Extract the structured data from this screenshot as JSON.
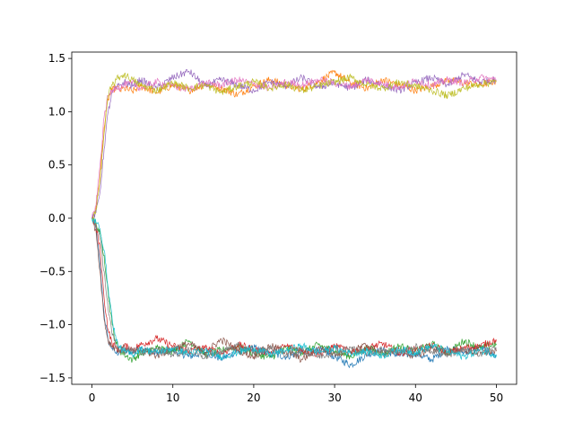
{
  "chart_data": {
    "type": "line",
    "title": "",
    "xlabel": "",
    "ylabel": "",
    "xlim": [
      -2.5,
      52.5
    ],
    "ylim": [
      -1.56,
      1.56
    ],
    "grid": false,
    "legend": "none",
    "x_ticks": [
      {
        "value": 0,
        "label": "0"
      },
      {
        "value": 10,
        "label": "10"
      },
      {
        "value": 20,
        "label": "20"
      },
      {
        "value": 30,
        "label": "30"
      },
      {
        "value": 40,
        "label": "40"
      },
      {
        "value": 50,
        "label": "50"
      }
    ],
    "y_ticks": [
      {
        "value": -1.5,
        "label": "−1.5"
      },
      {
        "value": -1.0,
        "label": "−1.0"
      },
      {
        "value": -0.5,
        "label": "−0.5"
      },
      {
        "value": 0.0,
        "label": "0.0"
      },
      {
        "value": 0.5,
        "label": "0.5"
      },
      {
        "value": 1.0,
        "label": "1.0"
      },
      {
        "value": 1.5,
        "label": "1.5"
      }
    ],
    "series": [
      {
        "color": "#1f77b4",
        "x": [
          0,
          0.5,
          1,
          1.5,
          2,
          2.5,
          3,
          3.5,
          4,
          5,
          6,
          8,
          10,
          12,
          14,
          16,
          18,
          20,
          22,
          24,
          26,
          28,
          30,
          32,
          34,
          36,
          38,
          40,
          42,
          44,
          46,
          48,
          50
        ],
        "y": [
          0,
          -0.1,
          -0.45,
          -0.9,
          -1.15,
          -1.22,
          -1.27,
          -1.25,
          -1.24,
          -1.26,
          -1.22,
          -1.27,
          -1.24,
          -1.3,
          -1.26,
          -1.32,
          -1.25,
          -1.22,
          -1.28,
          -1.3,
          -1.26,
          -1.23,
          -1.3,
          -1.38,
          -1.28,
          -1.24,
          -1.29,
          -1.27,
          -1.33,
          -1.22,
          -1.26,
          -1.21,
          -1.3
        ]
      },
      {
        "color": "#ff7f0e",
        "x": [
          0,
          0.5,
          1,
          1.5,
          2,
          2.5,
          3,
          3.5,
          4,
          5,
          6,
          8,
          10,
          12,
          14,
          16,
          18,
          20,
          22,
          24,
          26,
          28,
          30,
          32,
          34,
          36,
          38,
          40,
          42,
          44,
          46,
          48,
          50
        ],
        "y": [
          0,
          0.1,
          0.4,
          0.85,
          1.12,
          1.2,
          1.23,
          1.2,
          1.22,
          1.19,
          1.24,
          1.18,
          1.25,
          1.2,
          1.26,
          1.22,
          1.16,
          1.24,
          1.3,
          1.25,
          1.21,
          1.28,
          1.37,
          1.27,
          1.22,
          1.3,
          1.25,
          1.2,
          1.24,
          1.3,
          1.27,
          1.25,
          1.29
        ]
      },
      {
        "color": "#2ca02c",
        "x": [
          0,
          0.5,
          1,
          1.5,
          2,
          2.5,
          3,
          3.5,
          4,
          5,
          6,
          8,
          10,
          12,
          14,
          16,
          18,
          20,
          22,
          24,
          26,
          28,
          30,
          32,
          34,
          36,
          38,
          40,
          42,
          44,
          46,
          48,
          50
        ],
        "y": [
          0,
          -0.05,
          -0.15,
          -0.35,
          -0.7,
          -1.0,
          -1.18,
          -1.25,
          -1.28,
          -1.33,
          -1.27,
          -1.22,
          -1.25,
          -1.15,
          -1.28,
          -1.24,
          -1.2,
          -1.27,
          -1.31,
          -1.22,
          -1.26,
          -1.19,
          -1.25,
          -1.3,
          -1.22,
          -1.27,
          -1.2,
          -1.25,
          -1.18,
          -1.27,
          -1.15,
          -1.22,
          -1.18
        ]
      },
      {
        "color": "#d62728",
        "x": [
          0,
          0.5,
          1,
          1.5,
          2,
          2.5,
          3,
          3.5,
          4,
          5,
          6,
          8,
          10,
          12,
          14,
          16,
          18,
          20,
          22,
          24,
          26,
          28,
          30,
          32,
          34,
          36,
          38,
          40,
          42,
          44,
          46,
          48,
          50
        ],
        "y": [
          0,
          -0.08,
          -0.3,
          -0.75,
          -1.05,
          -1.18,
          -1.22,
          -1.24,
          -1.2,
          -1.23,
          -1.19,
          -1.13,
          -1.2,
          -1.25,
          -1.22,
          -1.27,
          -1.19,
          -1.23,
          -1.26,
          -1.2,
          -1.24,
          -1.28,
          -1.2,
          -1.25,
          -1.22,
          -1.18,
          -1.27,
          -1.23,
          -1.2,
          -1.26,
          -1.22,
          -1.2,
          -1.14
        ]
      },
      {
        "color": "#9467bd",
        "x": [
          0,
          0.5,
          1,
          1.5,
          2,
          2.5,
          3,
          3.5,
          4,
          5,
          6,
          8,
          10,
          12,
          14,
          16,
          18,
          20,
          22,
          24,
          26,
          28,
          30,
          32,
          34,
          36,
          38,
          40,
          42,
          44,
          46,
          48,
          50
        ],
        "y": [
          0,
          0.05,
          0.25,
          0.65,
          1.0,
          1.18,
          1.22,
          1.25,
          1.28,
          1.24,
          1.3,
          1.22,
          1.32,
          1.38,
          1.24,
          1.3,
          1.25,
          1.2,
          1.28,
          1.24,
          1.32,
          1.23,
          1.27,
          1.22,
          1.3,
          1.25,
          1.2,
          1.27,
          1.32,
          1.25,
          1.35,
          1.28,
          1.3
        ]
      },
      {
        "color": "#8c564b",
        "x": [
          0,
          0.5,
          1,
          1.5,
          2,
          2.5,
          3,
          3.5,
          4,
          5,
          6,
          8,
          10,
          12,
          14,
          16,
          18,
          20,
          22,
          24,
          26,
          28,
          30,
          32,
          34,
          36,
          38,
          40,
          42,
          44,
          46,
          48,
          50
        ],
        "y": [
          0,
          -0.12,
          -0.5,
          -0.95,
          -1.15,
          -1.2,
          -1.22,
          -1.25,
          -1.21,
          -1.27,
          -1.24,
          -1.29,
          -1.22,
          -1.18,
          -1.26,
          -1.14,
          -1.24,
          -1.3,
          -1.2,
          -1.25,
          -1.33,
          -1.22,
          -1.27,
          -1.25,
          -1.19,
          -1.28,
          -1.24,
          -1.3,
          -1.22,
          -1.26,
          -1.24,
          -1.27,
          -1.25
        ]
      },
      {
        "color": "#e377c2",
        "x": [
          0,
          0.5,
          1,
          1.5,
          2,
          2.5,
          3,
          3.5,
          4,
          5,
          6,
          8,
          10,
          12,
          14,
          16,
          18,
          20,
          22,
          24,
          26,
          28,
          30,
          32,
          34,
          36,
          38,
          40,
          42,
          44,
          46,
          48,
          50
        ],
        "y": [
          0,
          0.12,
          0.5,
          0.95,
          1.15,
          1.2,
          1.24,
          1.22,
          1.25,
          1.27,
          1.22,
          1.28,
          1.24,
          1.21,
          1.27,
          1.25,
          1.3,
          1.26,
          1.22,
          1.28,
          1.25,
          1.3,
          1.27,
          1.24,
          1.3,
          1.26,
          1.23,
          1.29,
          1.25,
          1.3,
          1.27,
          1.32,
          1.3
        ]
      },
      {
        "color": "#7f7f7f",
        "x": [
          0,
          0.5,
          1,
          1.5,
          2,
          2.5,
          3,
          3.5,
          4,
          5,
          6,
          8,
          10,
          12,
          14,
          16,
          18,
          20,
          22,
          24,
          26,
          28,
          30,
          32,
          34,
          36,
          38,
          40,
          42,
          44,
          46,
          48,
          50
        ],
        "y": [
          0,
          -0.06,
          -0.2,
          -0.5,
          -0.85,
          -1.1,
          -1.2,
          -1.23,
          -1.25,
          -1.22,
          -1.27,
          -1.23,
          -1.28,
          -1.24,
          -1.3,
          -1.25,
          -1.2,
          -1.26,
          -1.22,
          -1.28,
          -1.24,
          -1.3,
          -1.26,
          -1.22,
          -1.27,
          -1.23,
          -1.26,
          -1.21,
          -1.25,
          -1.28,
          -1.24,
          -1.27,
          -1.22
        ]
      },
      {
        "color": "#bcbd22",
        "x": [
          0,
          0.5,
          1,
          1.5,
          2,
          2.5,
          3,
          3.5,
          4,
          5,
          6,
          8,
          10,
          12,
          14,
          16,
          18,
          20,
          22,
          24,
          26,
          28,
          30,
          32,
          34,
          36,
          38,
          40,
          42,
          44,
          46,
          48,
          50
        ],
        "y": [
          0,
          0.08,
          0.35,
          0.8,
          1.15,
          1.25,
          1.3,
          1.33,
          1.35,
          1.3,
          1.25,
          1.2,
          1.27,
          1.22,
          1.25,
          1.18,
          1.24,
          1.28,
          1.22,
          1.26,
          1.2,
          1.24,
          1.28,
          1.32,
          1.25,
          1.22,
          1.28,
          1.24,
          1.2,
          1.15,
          1.22,
          1.26,
          1.28
        ]
      },
      {
        "color": "#17becf",
        "x": [
          0,
          0.5,
          1,
          1.5,
          2,
          2.5,
          3,
          3.5,
          4,
          5,
          6,
          8,
          10,
          12,
          14,
          16,
          18,
          20,
          22,
          24,
          26,
          28,
          30,
          32,
          34,
          36,
          38,
          40,
          42,
          44,
          46,
          48,
          50
        ],
        "y": [
          0,
          -0.04,
          -0.1,
          -0.3,
          -0.65,
          -0.95,
          -1.15,
          -1.22,
          -1.25,
          -1.28,
          -1.23,
          -1.26,
          -1.22,
          -1.27,
          -1.24,
          -1.3,
          -1.26,
          -1.22,
          -1.28,
          -1.24,
          -1.2,
          -1.26,
          -1.22,
          -1.27,
          -1.25,
          -1.29,
          -1.23,
          -1.26,
          -1.2,
          -1.25,
          -1.3,
          -1.24,
          -1.28
        ]
      }
    ]
  }
}
